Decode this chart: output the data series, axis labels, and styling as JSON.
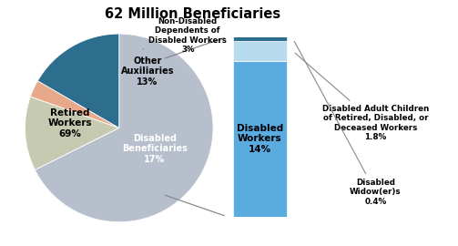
{
  "title": "62 Million Beneficiaries",
  "pie_values": [
    69,
    13,
    3,
    17
  ],
  "pie_colors": [
    "#b8bfcc",
    "#c5cab0",
    "#e8a98a",
    "#2d6e8f"
  ],
  "bar_segments": [
    {
      "value": 14,
      "color": "#5aace0"
    },
    {
      "value": 1.8,
      "color": "#b8dced"
    },
    {
      "value": 0.4,
      "color": "#2d6e8f"
    }
  ],
  "background_color": "#ffffff"
}
